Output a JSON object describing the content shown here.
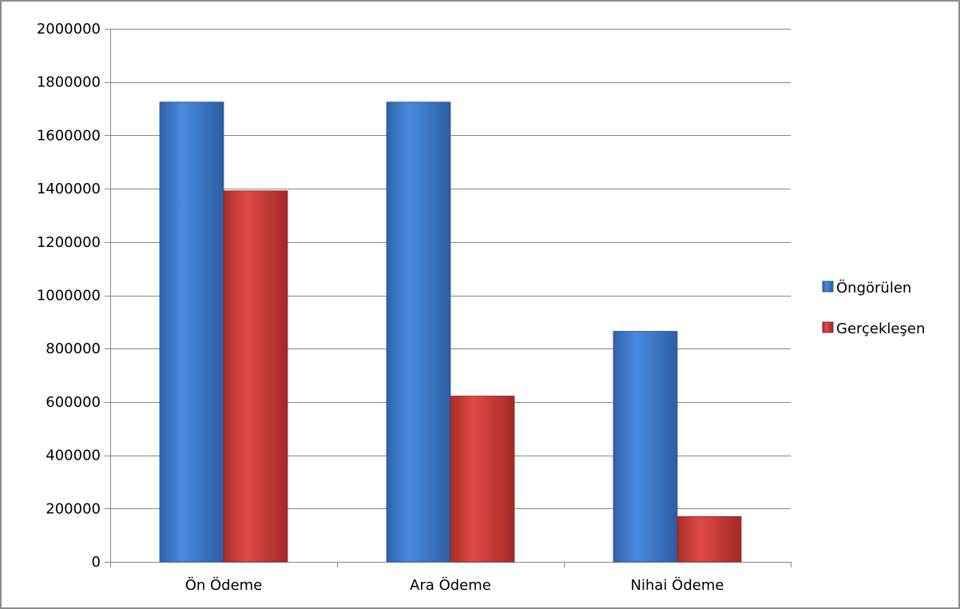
{
  "chart_data": {
    "type": "bar",
    "categories": [
      "Ön Ödeme",
      "Ara Ödeme",
      "Nihai Ödeme"
    ],
    "series": [
      {
        "name": "Öngörülen",
        "values": [
          1725000,
          1725000,
          865000
        ],
        "color": "#3d7fd3"
      },
      {
        "name": "Gerçekleşen",
        "values": [
          1392000,
          622000,
          170000
        ],
        "color": "#d23f3c"
      }
    ],
    "ylim": [
      0,
      2000000
    ],
    "yticks": [
      "0",
      "200000",
      "400000",
      "600000",
      "800000",
      "1000000",
      "1200000",
      "1400000",
      "1600000",
      "1800000",
      "2000000"
    ],
    "grid": true,
    "legend_position": "right",
    "title": "",
    "xlabel": "",
    "ylabel": ""
  }
}
